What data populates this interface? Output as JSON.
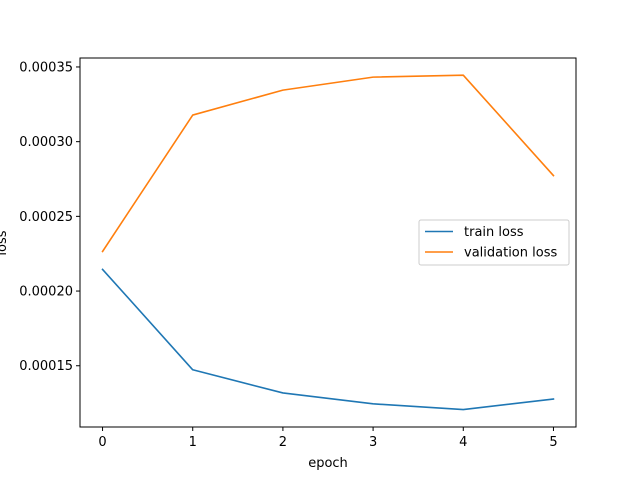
{
  "chart_data": {
    "type": "line",
    "title": "",
    "xlabel": "epoch",
    "ylabel": "loss",
    "x": [
      0,
      1,
      2,
      3,
      4,
      5
    ],
    "xticks": [
      "0",
      "1",
      "2",
      "3",
      "4",
      "5"
    ],
    "yticks": [
      0.00015,
      0.0002,
      0.00025,
      0.0003,
      0.00035
    ],
    "ytick_labels": [
      "0.00015",
      "0.00020",
      "0.00025",
      "0.00030",
      "0.00035"
    ],
    "xlim": [
      -0.25,
      5.25
    ],
    "ylim": [
      0.000109,
      0.000356
    ],
    "grid": false,
    "legend_position": "center-right",
    "series": [
      {
        "name": "train loss",
        "color": "#1f77b4",
        "values": [
          0.0002145,
          0.0001473,
          0.0001318,
          0.0001245,
          0.0001207,
          0.0001277
        ]
      },
      {
        "name": "validation loss",
        "color": "#ff7f0e",
        "values": [
          0.0002265,
          0.0003178,
          0.0003345,
          0.0003432,
          0.0003445,
          0.0002773
        ]
      }
    ]
  }
}
